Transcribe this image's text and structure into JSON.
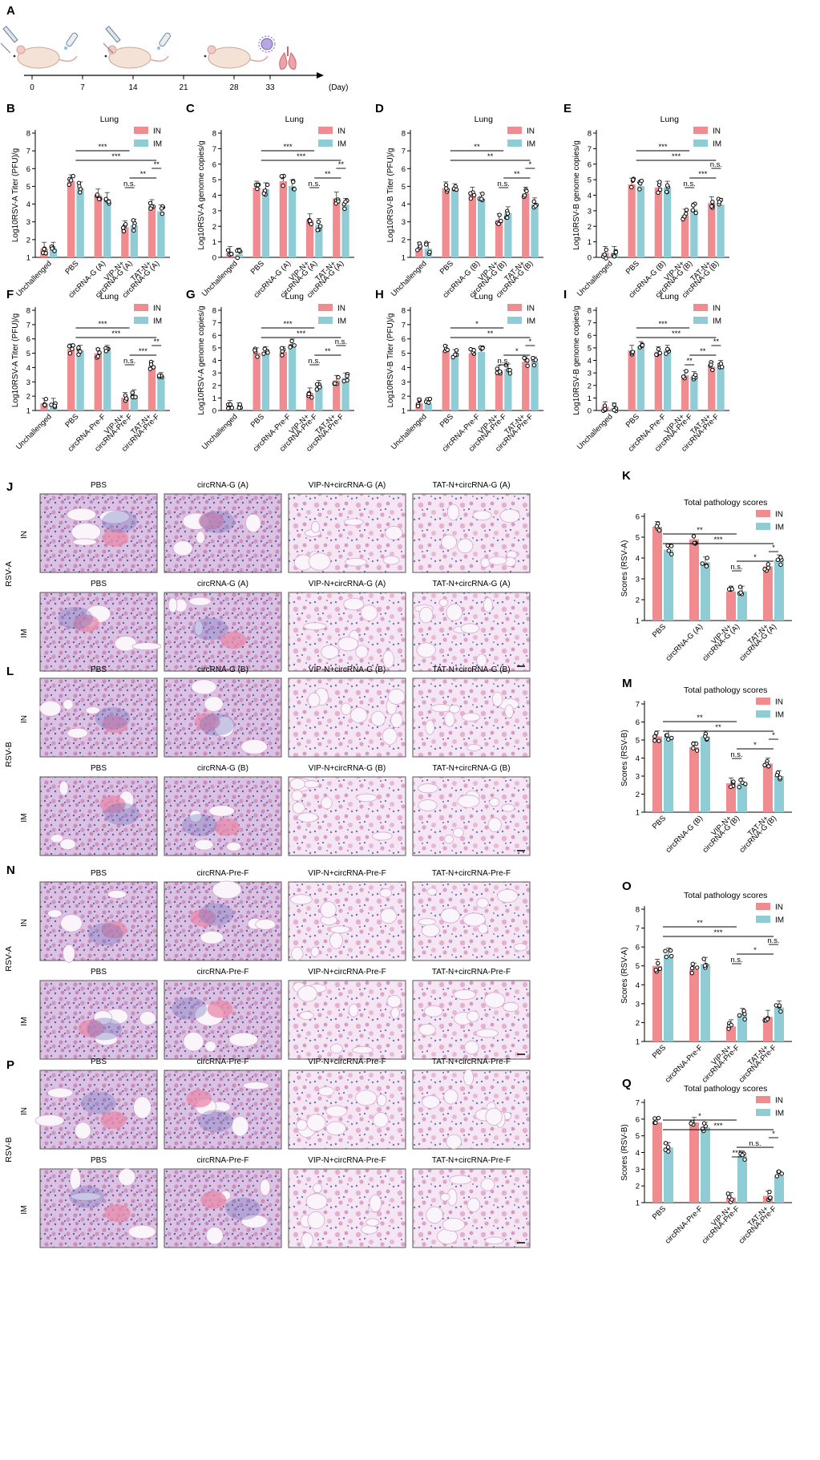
{
  "timeline": {
    "letter": "A",
    "ticks": [
      "0",
      "7",
      "14",
      "21",
      "28",
      "33"
    ],
    "unit": "(Day)"
  },
  "colors": {
    "IN": "#F08C8F",
    "IM": "#8FCCD6",
    "tissue_bg": "#F2E4F4",
    "tissue_pink": "#E58FB2",
    "tissue_blue": "#6F78C2"
  },
  "legend": [
    "IN",
    "IM"
  ],
  "chart_data": [
    {
      "id": "B",
      "type": "bar",
      "title": "Lung",
      "ylabel": "Log10RSV-A Titer (PFU)/g",
      "ylim": [
        1,
        8
      ],
      "yticks": [
        1,
        2,
        3,
        4,
        5,
        6,
        7,
        8
      ],
      "categories": [
        "Unchallenged",
        "PBS",
        "circRNA-G (A)",
        "VIP-N+\ncircRNA-G (A)",
        "TAT-N+\ncircRNA-G (A)"
      ],
      "series": [
        {
          "name": "IN",
          "values": [
            1.5,
            5.3,
            4.5,
            2.7,
            3.9
          ]
        },
        {
          "name": "IM",
          "values": [
            1.5,
            4.9,
            4.3,
            2.8,
            3.6
          ]
        }
      ],
      "sig": [
        "***",
        "***",
        "n.s.",
        "**",
        "**"
      ]
    },
    {
      "id": "C",
      "type": "bar",
      "title": "Lung",
      "ylabel": "Log10RSV-A genome copies/g",
      "ylim": [
        0,
        8
      ],
      "yticks": [
        0,
        1,
        2,
        3,
        4,
        5,
        6,
        7,
        8
      ],
      "categories": [
        "Unchallenged",
        "PBS",
        "circRNA-G (A)",
        "VIP-N+\ncircRNA-G (A)",
        "TAT-N+\ncircRNA-G (A)"
      ],
      "series": [
        {
          "name": "IN",
          "values": [
            0.3,
            4.5,
            4.9,
            2.4,
            3.8
          ]
        },
        {
          "name": "IM",
          "values": [
            0.2,
            4.4,
            4.6,
            2.1,
            3.4
          ]
        }
      ],
      "sig": [
        "***",
        "***",
        "n.s.",
        "**",
        "**"
      ]
    },
    {
      "id": "D",
      "type": "bar",
      "title": "Lung",
      "ylabel": "Log10RSV-B Titer (PFU)/g",
      "ylim": [
        1,
        8
      ],
      "yticks": [
        1,
        2,
        3,
        4,
        5,
        6,
        7,
        8
      ],
      "categories": [
        "Unchallenged",
        "PBS",
        "circRNA-G (B)",
        "VIP-N+\ncircRNA-G (B)",
        "TAT-N+\ncircRNA-G (B)"
      ],
      "series": [
        {
          "name": "IN",
          "values": [
            1.5,
            4.9,
            4.6,
            3.1,
            4.6
          ]
        },
        {
          "name": "IM",
          "values": [
            1.5,
            4.8,
            4.3,
            3.5,
            4.0
          ]
        }
      ],
      "sig": [
        "**",
        "**",
        "n.s.",
        "**",
        "*"
      ]
    },
    {
      "id": "E",
      "type": "bar",
      "title": "Lung",
      "ylabel": "Log10RSV-B genome copies/g",
      "ylim": [
        0,
        8
      ],
      "yticks": [
        0,
        1,
        2,
        3,
        4,
        5,
        6,
        7,
        8
      ],
      "categories": [
        "Unchallenged",
        "PBS",
        "circRNA-G (B)",
        "VIP-N+\ncircRNA-G (B)",
        "TAT-N+\ncircRNA-G (B)"
      ],
      "series": [
        {
          "name": "IN",
          "values": [
            0.3,
            4.7,
            4.5,
            2.7,
            3.5
          ]
        },
        {
          "name": "IM",
          "values": [
            0.3,
            4.6,
            4.5,
            3.1,
            3.4
          ]
        }
      ],
      "sig": [
        "***",
        "***",
        "n.s.",
        "***",
        "n.s."
      ]
    },
    {
      "id": "F",
      "type": "bar",
      "title": "Lung",
      "ylabel": "Log10RSV-A Titer (PFU)/g",
      "ylim": [
        1,
        8
      ],
      "yticks": [
        1,
        2,
        3,
        4,
        5,
        6,
        7,
        8
      ],
      "categories": [
        "Unchallenged",
        "PBS",
        "circRNA-Pre-F",
        "VIP-N+\ncircRNA-Pre-F",
        "TAT-N+\ncircRNA-Pre-F"
      ],
      "series": [
        {
          "name": "IN",
          "values": [
            1.5,
            5.3,
            5.0,
            1.9,
            4.1
          ]
        },
        {
          "name": "IM",
          "values": [
            1.5,
            5.2,
            5.2,
            2.1,
            3.3
          ]
        }
      ],
      "sig": [
        "***",
        "***",
        "n.s.",
        "***",
        "**"
      ]
    },
    {
      "id": "G",
      "type": "bar",
      "title": "Lung",
      "ylabel": "Log10RSV-A genome copies/g",
      "ylim": [
        0,
        8
      ],
      "yticks": [
        0,
        1,
        2,
        3,
        4,
        5,
        6,
        7,
        8
      ],
      "categories": [
        "Unchallenged",
        "PBS",
        "circRNA-Pre-F",
        "VIP-N+\ncircRNA-Pre-F",
        "TAT-N+\ncircRNA-Pre-F"
      ],
      "series": [
        {
          "name": "IN",
          "values": [
            0.4,
            4.6,
            4.7,
            1.4,
            2.4
          ]
        },
        {
          "name": "IM",
          "values": [
            0.2,
            4.7,
            5.3,
            2.0,
            2.6
          ]
        }
      ],
      "sig": [
        "***",
        "***",
        "n.s.",
        "**",
        "n.s."
      ]
    },
    {
      "id": "H",
      "type": "bar",
      "title": "Lung",
      "ylabel": "Log10RSV-B Titer (PFU)/g",
      "ylim": [
        1,
        8
      ],
      "yticks": [
        1,
        2,
        3,
        4,
        5,
        6,
        7,
        8
      ],
      "categories": [
        "Unchallenged",
        "PBS",
        "circRNA-Pre-F",
        "VIP-N+\ncircRNA-Pre-F",
        "TAT-N+\ncircRNA-Pre-F"
      ],
      "series": [
        {
          "name": "IN",
          "values": [
            1.5,
            5.2,
            5.0,
            3.8,
            4.4
          ]
        },
        {
          "name": "IM",
          "values": [
            1.5,
            4.9,
            5.1,
            3.9,
            4.4
          ]
        }
      ],
      "sig": [
        "*",
        "**",
        "n.s.",
        "*",
        "*"
      ]
    },
    {
      "id": "I",
      "type": "bar",
      "title": "Lung",
      "ylabel": "Log10RSV-B genome copies/g",
      "ylim": [
        0,
        8
      ],
      "yticks": [
        0,
        1,
        2,
        3,
        4,
        5,
        6,
        7,
        8
      ],
      "categories": [
        "Unchallenged",
        "PBS",
        "circRNA-Pre-F",
        "VIP-N+\ncircRNA-Pre-F",
        "TAT-N+\ncircRNA-Pre-F"
      ],
      "series": [
        {
          "name": "IN",
          "values": [
            0.3,
            4.8,
            4.7,
            2.8,
            3.5
          ]
        },
        {
          "name": "IM",
          "values": [
            0.2,
            5.1,
            4.8,
            2.7,
            3.6
          ]
        }
      ],
      "sig": [
        "***",
        "***",
        "**",
        "**",
        "**"
      ]
    },
    {
      "id": "K",
      "type": "bar",
      "title": "Total pathology scores",
      "ylabel": "Scores (RSV-A)",
      "ylim": [
        1,
        6
      ],
      "yticks": [
        1,
        2,
        3,
        4,
        5,
        6
      ],
      "categories": [
        "PBS",
        "circRNA-G (A)",
        "VIP-N+\ncircRNA-G (A)",
        "TAT-N+\ncircRNA-G (A)"
      ],
      "series": [
        {
          "name": "IN",
          "values": [
            5.5,
            4.9,
            2.4,
            3.6
          ]
        },
        {
          "name": "IM",
          "values": [
            4.4,
            3.8,
            2.4,
            3.9
          ]
        }
      ],
      "sig": [
        "**",
        "***",
        "n.s.",
        "*",
        "*"
      ]
    },
    {
      "id": "M",
      "type": "bar",
      "title": "Total pathology scores",
      "ylabel": "Scores (RSV-B)",
      "ylim": [
        1,
        7
      ],
      "yticks": [
        1,
        2,
        3,
        4,
        5,
        6,
        7
      ],
      "categories": [
        "PBS",
        "circRNA-G (B)",
        "VIP-N+\ncircRNA-G (B)",
        "TAT-N+\ncircRNA-G (B)"
      ],
      "series": [
        {
          "name": "IN",
          "values": [
            5.2,
            4.6,
            2.6,
            3.7
          ]
        },
        {
          "name": "IM",
          "values": [
            5.2,
            5.2,
            2.6,
            3.0
          ]
        }
      ],
      "sig": [
        "**",
        "**",
        "n.s.",
        "*",
        "*"
      ]
    },
    {
      "id": "O",
      "type": "bar",
      "title": "Total pathology scores",
      "ylabel": "Scores (RSV-A)",
      "ylim": [
        1,
        8
      ],
      "yticks": [
        1,
        2,
        3,
        4,
        5,
        6,
        7,
        8
      ],
      "categories": [
        "PBS",
        "circRNA-Pre-F",
        "VIP-N+\ncircRNA-Pre-F",
        "TAT-N+\ncircRNA-Pre-F"
      ],
      "series": [
        {
          "name": "IN",
          "values": [
            5.0,
            4.8,
            1.8,
            2.3
          ]
        },
        {
          "name": "IM",
          "values": [
            5.6,
            5.1,
            2.4,
            2.8
          ]
        }
      ],
      "sig": [
        "**",
        "***",
        "n.s.",
        "*",
        "n.s."
      ]
    },
    {
      "id": "Q",
      "type": "bar",
      "title": "Total pathology scores",
      "ylabel": "Scores (RSV-B)",
      "ylim": [
        1,
        7
      ],
      "yticks": [
        1,
        2,
        3,
        4,
        5,
        6,
        7
      ],
      "categories": [
        "PBS",
        "circRNA-Pre-F",
        "VIP-N+\ncircRNA-Pre-F",
        "TAT-N+\ncircRNA-Pre-F"
      ],
      "series": [
        {
          "name": "IN",
          "values": [
            5.8,
            5.8,
            1.3,
            1.4
          ]
        },
        {
          "name": "IM",
          "values": [
            4.3,
            5.5,
            3.8,
            2.6
          ]
        }
      ],
      "sig": [
        "*",
        "***",
        "***",
        "n.s.",
        "*"
      ]
    }
  ],
  "histology": [
    {
      "id": "J",
      "virus": "RSV-A",
      "rows": [
        {
          "route": "IN",
          "labels": [
            "PBS",
            "circRNA-G (A)",
            "VIP-N+circRNA-G (A)",
            "TAT-N+circRNA-G (A)"
          ]
        },
        {
          "route": "IM",
          "labels": [
            "PBS",
            "circRNA-G (A)",
            "VIP-N+circRNA-G (A)",
            "TAT-N+circRNA-G (A)"
          ]
        }
      ]
    },
    {
      "id": "L",
      "virus": "RSV-B",
      "rows": [
        {
          "route": "IN",
          "labels": [
            "PBS",
            "circRNA-G (B)",
            "VIP-N+circRNA-G (B)",
            "TAT-N+circRNA-G (B)"
          ]
        },
        {
          "route": "IM",
          "labels": [
            "PBS",
            "circRNA-G (B)",
            "VIP-N+circRNA-G (B)",
            "TAT-N+circRNA-G (B)"
          ]
        }
      ]
    },
    {
      "id": "N",
      "virus": "RSV-A",
      "rows": [
        {
          "route": "IN",
          "labels": [
            "PBS",
            "circRNA-Pre-F",
            "VIP-N+circRNA-Pre-F",
            "TAT-N+circRNA-Pre-F"
          ]
        },
        {
          "route": "IM",
          "labels": [
            "PBS",
            "circRNA-Pre-F",
            "VIP-N+circRNA-Pre-F",
            "TAT-N+circRNA-Pre-F"
          ]
        }
      ]
    },
    {
      "id": "P",
      "virus": "RSV-B",
      "rows": [
        {
          "route": "IN",
          "labels": [
            "PBS",
            "circRNA-Pre-F",
            "VIP-N+circRNA-Pre-F",
            "TAT-N+circRNA-Pre-F"
          ]
        },
        {
          "route": "IM",
          "labels": [
            "PBS",
            "circRNA-Pre-F",
            "VIP-N+circRNA-Pre-F",
            "TAT-N+circRNA-Pre-F"
          ]
        }
      ]
    }
  ]
}
